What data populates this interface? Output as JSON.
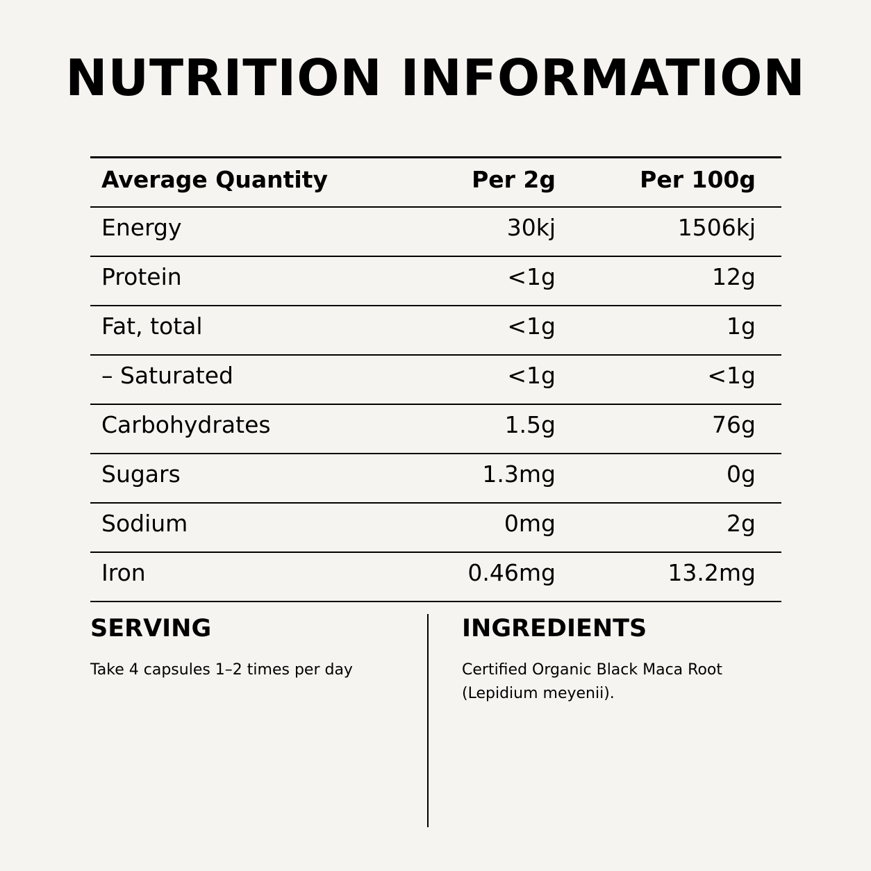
{
  "title": "NUTRITION INFORMATION",
  "table": {
    "headers": {
      "name": "Average Quantity",
      "per_2g": "Per 2g",
      "per_100g": "Per 100g"
    },
    "rows": [
      {
        "name": "Energy",
        "per_2g": "30kj",
        "per_100g": "1506kj"
      },
      {
        "name": "Protein",
        "per_2g": "<1g",
        "per_100g": "12g"
      },
      {
        "name": "Fat, total",
        "per_2g": "<1g",
        "per_100g": "1g"
      },
      {
        "name": "– Saturated",
        "per_2g": "<1g",
        "per_100g": "<1g"
      },
      {
        "name": "Carbohydrates",
        "per_2g": "1.5g",
        "per_100g": "76g"
      },
      {
        "name": "Sugars",
        "per_2g": "1.3mg",
        "per_100g": "0g"
      },
      {
        "name": "Sodium",
        "per_2g": "0mg",
        "per_100g": "2g"
      },
      {
        "name": "Iron",
        "per_2g": "0.46mg",
        "per_100g": "13.2mg"
      }
    ]
  },
  "serving": {
    "heading": "SERVING",
    "text": "Take 4 capsules 1–2 times per day"
  },
  "ingredients": {
    "heading": "INGREDIENTS",
    "line1": "Certified Organic Black Maca Root",
    "line2": "(Lepidium meyenii)."
  }
}
